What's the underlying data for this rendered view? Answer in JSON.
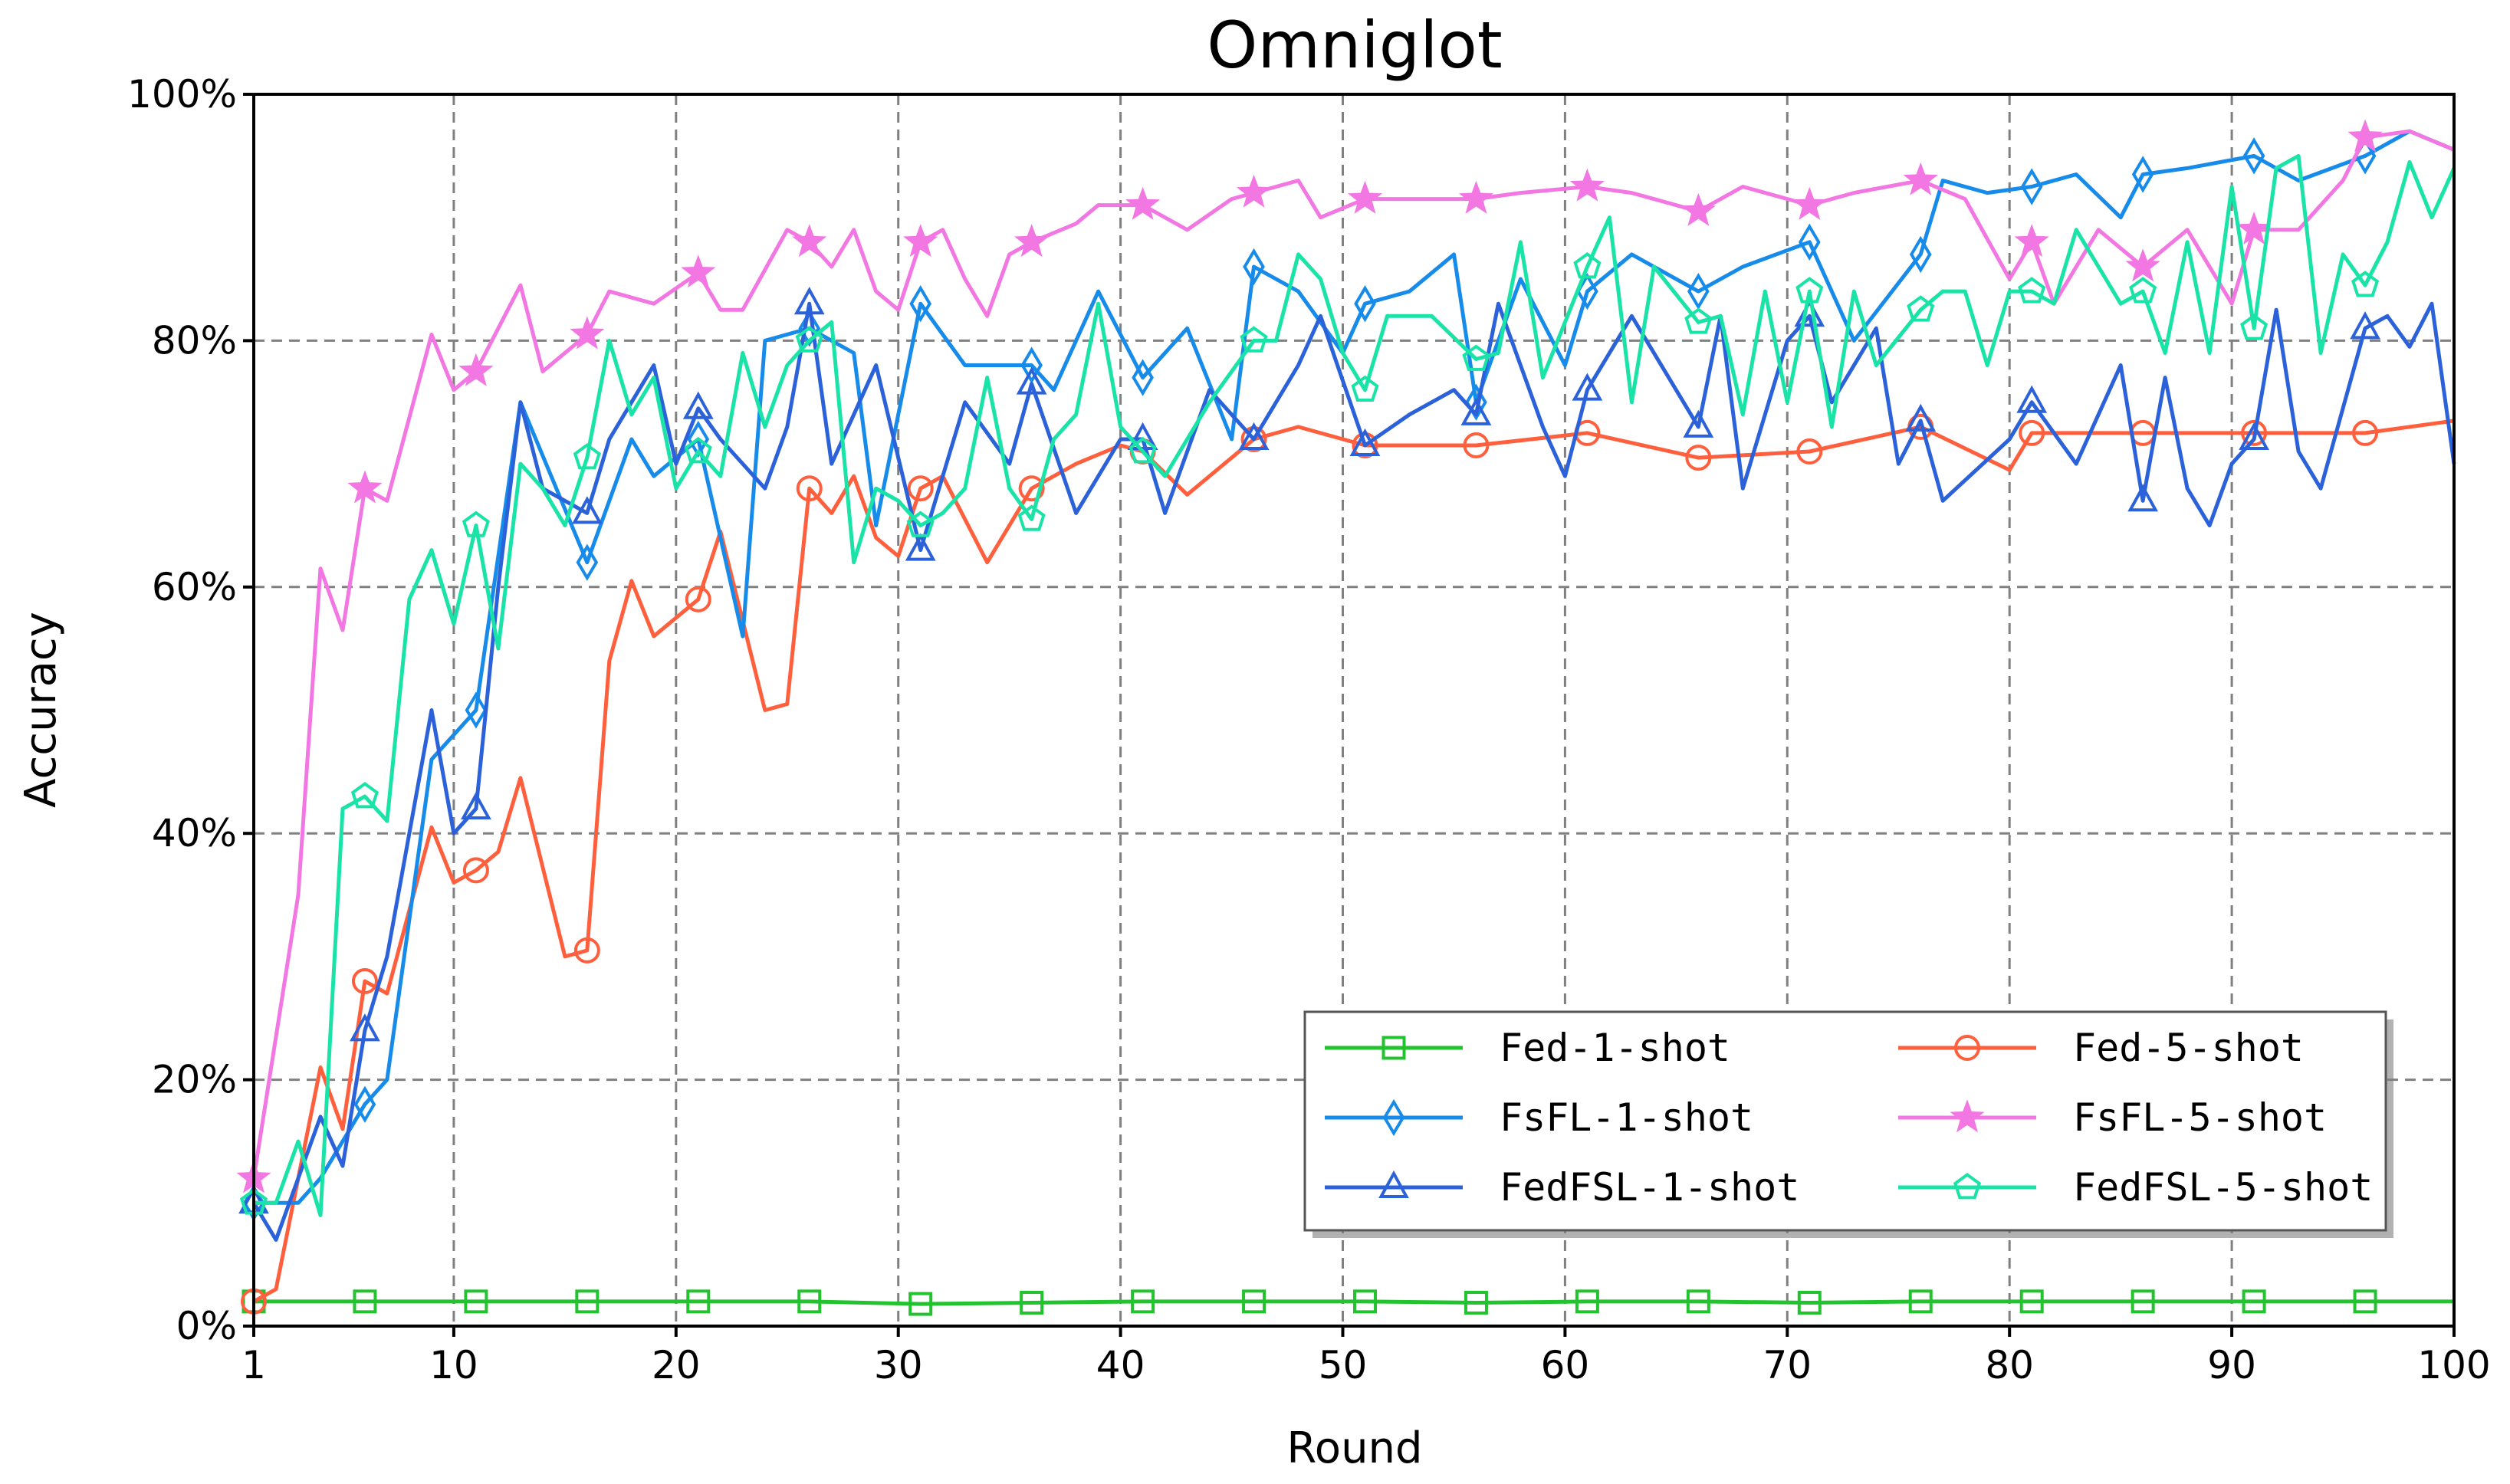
{
  "chart_data": {
    "type": "line",
    "title": "Omniglot",
    "xlabel": "Round",
    "ylabel": "Accuracy",
    "xlim": [
      1,
      100
    ],
    "ylim": [
      0,
      100
    ],
    "x_ticks": [
      1,
      10,
      20,
      30,
      40,
      50,
      60,
      70,
      80,
      90,
      100
    ],
    "x_tick_labels": [
      "1",
      "10",
      "20",
      "30",
      "40",
      "50",
      "60",
      "70",
      "80",
      "90",
      "100"
    ],
    "y_ticks": [
      0,
      20,
      40,
      60,
      80,
      100
    ],
    "y_tick_labels": [
      "0%",
      "20%",
      "40%",
      "60%",
      "80%",
      "100%"
    ],
    "grid": true,
    "legend_position": "lower-right",
    "legend_columns": 2,
    "marker_every": 5,
    "series": [
      {
        "name": "Fed-1-shot",
        "color": "#22c32e",
        "marker": "square",
        "x": [
          1,
          6,
          11,
          16,
          21,
          26,
          31,
          36,
          41,
          46,
          51,
          56,
          61,
          66,
          71,
          76,
          81,
          86,
          91,
          96,
          100
        ],
        "values": [
          2,
          2,
          2,
          2,
          2,
          2,
          1.8,
          1.9,
          2,
          2,
          2,
          1.9,
          2,
          2,
          1.9,
          2,
          2,
          2,
          2,
          2,
          2
        ]
      },
      {
        "name": "Fed-5-shot",
        "color": "#ff5f3d",
        "marker": "circle",
        "x": [
          1,
          2,
          4,
          5,
          6,
          7,
          9,
          10,
          11,
          12,
          13,
          15,
          16,
          17,
          18,
          19,
          21,
          22,
          24,
          25,
          26,
          27,
          28,
          29,
          30,
          31,
          32,
          34,
          36,
          38,
          40,
          41,
          43,
          46,
          48,
          51,
          56,
          61,
          66,
          71,
          76,
          80,
          81,
          86,
          91,
          96,
          100
        ],
        "values": [
          2,
          3,
          21,
          16,
          28,
          27,
          40.5,
          36,
          37,
          38.5,
          44.5,
          30,
          30.5,
          54,
          60.5,
          56,
          59,
          64.5,
          50,
          50.5,
          68,
          66,
          69,
          64,
          62.5,
          68,
          69,
          62,
          68,
          70,
          71.5,
          71,
          67.5,
          72,
          73,
          71.5,
          71.5,
          72.5,
          70.5,
          71,
          73,
          69.5,
          72.5,
          72.5,
          72.5,
          72.5,
          73.5
        ]
      },
      {
        "name": "FsFL-1-shot",
        "color": "#168bea",
        "marker": "diamond",
        "x": [
          1,
          3,
          4,
          6,
          7,
          9,
          11,
          13,
          16,
          18,
          19,
          21,
          23,
          24,
          26,
          28,
          29,
          31,
          33,
          36,
          37,
          39,
          41,
          43,
          45,
          46,
          48,
          50,
          51,
          53,
          55,
          56,
          58,
          60,
          61,
          63,
          66,
          68,
          71,
          73,
          76,
          77,
          79,
          81,
          83,
          85,
          86,
          88,
          91,
          93,
          96,
          98,
          100
        ],
        "values": [
          10,
          10,
          12,
          18,
          20,
          46,
          50,
          75,
          62,
          72,
          69,
          72,
          56,
          80,
          81,
          79,
          65,
          83,
          78,
          78,
          76,
          84,
          77,
          81,
          72,
          86,
          84,
          79,
          83,
          84,
          87,
          75,
          85,
          78,
          84,
          87,
          84,
          86,
          88,
          80,
          87,
          93,
          92,
          92.5,
          93.5,
          90,
          93.5,
          94,
          95,
          93,
          95,
          97,
          95.5
        ]
      },
      {
        "name": "FsFL-5-shot",
        "color": "#f277e2",
        "marker": "star",
        "x": [
          1,
          3,
          4,
          5,
          6,
          7,
          9,
          10,
          11,
          13,
          14,
          16,
          17,
          19,
          21,
          22,
          23,
          25,
          26,
          27,
          28,
          29,
          30,
          31,
          32,
          33,
          34,
          35,
          36,
          38,
          39,
          41,
          43,
          45,
          46,
          48,
          49,
          51,
          53,
          56,
          58,
          61,
          63,
          66,
          68,
          71,
          73,
          76,
          78,
          80,
          81,
          82,
          84,
          86,
          88,
          90,
          91,
          93,
          95,
          96,
          98,
          100
        ],
        "values": [
          12,
          35,
          61.5,
          56.5,
          68,
          67,
          80.5,
          76,
          77.5,
          84.5,
          77.5,
          80.5,
          84,
          83,
          85.5,
          82.5,
          82.5,
          89,
          88,
          86,
          89,
          84,
          82.5,
          88,
          89,
          85,
          82,
          87,
          88,
          89.5,
          91,
          91,
          89,
          91.5,
          92,
          93,
          90,
          91.5,
          91.5,
          91.5,
          92,
          92.5,
          92,
          90.5,
          92.5,
          91,
          92,
          93,
          91.5,
          85,
          88,
          83,
          89,
          86,
          89,
          83,
          89,
          89,
          93,
          96.5,
          97,
          95.5
        ]
      },
      {
        "name": "FedFSL-1-shot",
        "color": "#2c62d9",
        "marker": "triangle",
        "x": [
          1,
          2,
          4,
          5,
          6,
          7,
          9,
          10,
          11,
          12,
          13,
          14,
          16,
          17,
          19,
          20,
          21,
          22,
          24,
          25,
          26,
          27,
          29,
          31,
          33,
          35,
          36,
          38,
          40,
          41,
          42,
          44,
          46,
          48,
          49,
          51,
          53,
          55,
          56,
          57,
          59,
          60,
          61,
          63,
          66,
          67,
          68,
          70,
          71,
          72,
          74,
          75,
          76,
          77,
          80,
          81,
          83,
          85,
          86,
          87,
          88,
          89,
          90,
          91,
          92,
          93,
          94,
          96,
          97,
          98,
          99,
          100
        ],
        "values": [
          10,
          7,
          17,
          13,
          24,
          30,
          50,
          40,
          42,
          60,
          75,
          68,
          66,
          72,
          78,
          70,
          74.5,
          72,
          68,
          73,
          83,
          70,
          78,
          63,
          75,
          70,
          76.5,
          66,
          72,
          72,
          66,
          76,
          72,
          78,
          82,
          71.5,
          74,
          76,
          74,
          83,
          73,
          69,
          76,
          82,
          73,
          82,
          68,
          80,
          82,
          75,
          81,
          70,
          73.5,
          67,
          72,
          75,
          70,
          78,
          67,
          77,
          68,
          65,
          70,
          72,
          82.5,
          71,
          68,
          81,
          82,
          79.5,
          83,
          70
        ]
      },
      {
        "name": "FedFSL-5-shot",
        "color": "#19e3a7",
        "marker": "pentagon",
        "x": [
          1,
          2,
          3,
          4,
          5,
          6,
          7,
          8,
          9,
          10,
          11,
          12,
          13,
          14,
          15,
          16,
          17,
          18,
          19,
          20,
          21,
          22,
          23,
          24,
          25,
          26,
          27,
          28,
          29,
          30,
          31,
          32,
          33,
          34,
          35,
          36,
          37,
          38,
          39,
          40,
          41,
          42,
          44,
          46,
          47,
          48,
          49,
          50,
          51,
          52,
          54,
          56,
          57,
          58,
          59,
          61,
          62,
          63,
          64,
          66,
          67,
          68,
          69,
          70,
          71,
          72,
          73,
          74,
          76,
          77,
          78,
          79,
          80,
          81,
          82,
          83,
          85,
          86,
          87,
          88,
          89,
          90,
          91,
          92,
          93,
          94,
          95,
          96,
          97,
          98,
          99,
          100
        ],
        "values": [
          10,
          10,
          15,
          9,
          42,
          43,
          41,
          59,
          63,
          57,
          65,
          55,
          70,
          68,
          65,
          70.5,
          80,
          74,
          77,
          68,
          71,
          69,
          79,
          73,
          78,
          80,
          81.5,
          62,
          68,
          67,
          65,
          66,
          68,
          77,
          68,
          65.5,
          72,
          74,
          83,
          73,
          71,
          69,
          75,
          80,
          80,
          87,
          85,
          79,
          76,
          82,
          82,
          78.5,
          79,
          88,
          77,
          86,
          90,
          75,
          86,
          81.5,
          82,
          74,
          84,
          75,
          84,
          73,
          84,
          78,
          82.5,
          84,
          84,
          78,
          84,
          84,
          83,
          89,
          83,
          84,
          79,
          88,
          79,
          92.5,
          81,
          94,
          95,
          79,
          87,
          84.5,
          88,
          94.5,
          90,
          94
        ]
      }
    ]
  }
}
